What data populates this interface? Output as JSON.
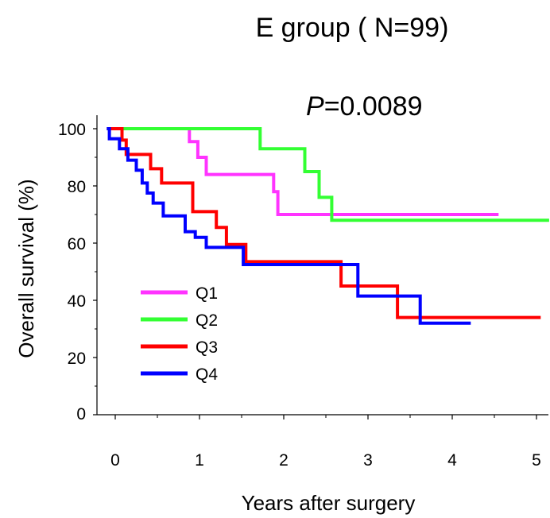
{
  "chart_data": {
    "type": "line",
    "step": true,
    "title": "E group ( N=99)",
    "annotation": {
      "italic": "P",
      "rest": "=0.0089"
    },
    "xlabel": "Years after surgery",
    "ylabel": "Overall survival (%)",
    "xlim": [
      -0.1,
      5.15
    ],
    "ylim": [
      0,
      100
    ],
    "xticks": [
      "0",
      "1",
      "2",
      "3",
      "4",
      "5"
    ],
    "yticks": [
      "0",
      "20",
      "40",
      "60",
      "80",
      "100"
    ],
    "grid": false,
    "legend_position": "bottom-left",
    "series": [
      {
        "name": "Q1",
        "color": "#ff33ff",
        "points": [
          [
            -0.1,
            100
          ],
          [
            0.88,
            100
          ],
          [
            0.88,
            95.5
          ],
          [
            0.98,
            95.5
          ],
          [
            0.98,
            90
          ],
          [
            1.08,
            90
          ],
          [
            1.08,
            84
          ],
          [
            1.88,
            84
          ],
          [
            1.88,
            78
          ],
          [
            1.93,
            78
          ],
          [
            1.93,
            70
          ],
          [
            4.55,
            70
          ]
        ]
      },
      {
        "name": "Q2",
        "color": "#33ff33",
        "points": [
          [
            -0.1,
            100
          ],
          [
            1.72,
            100
          ],
          [
            1.72,
            93
          ],
          [
            2.25,
            93
          ],
          [
            2.25,
            85
          ],
          [
            2.42,
            85
          ],
          [
            2.42,
            76
          ],
          [
            2.57,
            76
          ],
          [
            2.57,
            68
          ],
          [
            5.15,
            68
          ]
        ]
      },
      {
        "name": "Q3",
        "color": "#ff0000",
        "points": [
          [
            -0.1,
            100
          ],
          [
            0.08,
            100
          ],
          [
            0.08,
            96
          ],
          [
            0.13,
            96
          ],
          [
            0.13,
            91
          ],
          [
            0.42,
            91
          ],
          [
            0.42,
            86
          ],
          [
            0.55,
            86
          ],
          [
            0.55,
            81
          ],
          [
            0.92,
            81
          ],
          [
            0.92,
            71
          ],
          [
            1.2,
            71
          ],
          [
            1.2,
            65.5
          ],
          [
            1.32,
            65.5
          ],
          [
            1.32,
            59.5
          ],
          [
            1.55,
            59.5
          ],
          [
            1.55,
            53.5
          ],
          [
            2.68,
            53.5
          ],
          [
            2.68,
            45
          ],
          [
            3.35,
            45
          ],
          [
            3.35,
            34
          ],
          [
            5.05,
            34
          ]
        ]
      },
      {
        "name": "Q4",
        "color": "#0000ff",
        "points": [
          [
            -0.1,
            100
          ],
          [
            -0.07,
            100
          ],
          [
            -0.07,
            96.5
          ],
          [
            0.05,
            96.5
          ],
          [
            0.05,
            93
          ],
          [
            0.15,
            93
          ],
          [
            0.15,
            89
          ],
          [
            0.25,
            89
          ],
          [
            0.25,
            85.5
          ],
          [
            0.32,
            85.5
          ],
          [
            0.32,
            81
          ],
          [
            0.38,
            81
          ],
          [
            0.38,
            77.5
          ],
          [
            0.45,
            77.5
          ],
          [
            0.45,
            74
          ],
          [
            0.57,
            74
          ],
          [
            0.57,
            69.5
          ],
          [
            0.83,
            69.5
          ],
          [
            0.83,
            64
          ],
          [
            0.95,
            64
          ],
          [
            0.95,
            62
          ],
          [
            1.08,
            62
          ],
          [
            1.08,
            58.5
          ],
          [
            1.52,
            58.5
          ],
          [
            1.52,
            52.5
          ],
          [
            2.88,
            52.5
          ],
          [
            2.88,
            41.5
          ],
          [
            3.62,
            41.5
          ],
          [
            3.62,
            32
          ],
          [
            4.22,
            32
          ]
        ]
      }
    ]
  }
}
